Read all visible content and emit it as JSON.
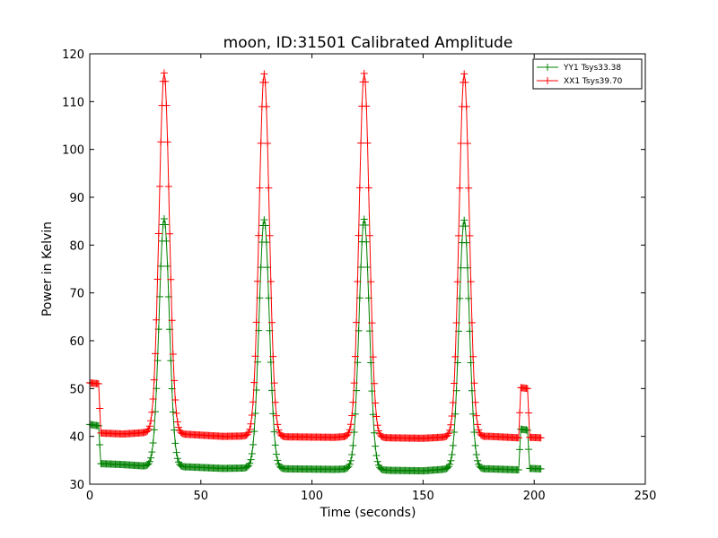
{
  "chart_data": {
    "type": "line",
    "title": "moon, ID:31501 Calibrated Amplitude",
    "xlabel": "Time (seconds)",
    "ylabel": "Power in Kelvin",
    "xlim": [
      0,
      250
    ],
    "ylim": [
      30,
      120
    ],
    "xticks": [
      "0",
      "50",
      "100",
      "150",
      "200",
      "250"
    ],
    "yticks": [
      "30",
      "40",
      "50",
      "60",
      "70",
      "80",
      "90",
      "100",
      "110",
      "120"
    ],
    "grid": false,
    "legend_position": "top-right",
    "series": [
      {
        "name": "YY1 Tsys33.38",
        "color": "#008000",
        "marker": "plus",
        "baseline": [
          [
            0,
            42.5
          ],
          [
            4,
            42.2
          ],
          [
            5,
            34.3
          ],
          [
            15,
            34.1
          ],
          [
            25,
            33.8
          ],
          [
            45,
            33.6
          ],
          [
            60,
            33.3
          ],
          [
            72,
            33.4
          ],
          [
            90,
            33.2
          ],
          [
            110,
            33.1
          ],
          [
            117,
            33.2
          ],
          [
            135,
            32.9
          ],
          [
            150,
            32.8
          ],
          [
            162,
            33.2
          ],
          [
            180,
            33.2
          ],
          [
            193,
            33.0
          ],
          [
            194,
            41.5
          ],
          [
            197,
            41.3
          ],
          [
            198,
            33.3
          ],
          [
            203,
            33.2
          ]
        ],
        "peaks": [
          {
            "center": 33.5,
            "height": 85.5
          },
          {
            "center": 78.5,
            "height": 85.3
          },
          {
            "center": 123.5,
            "height": 85.4
          },
          {
            "center": 168.5,
            "height": 85.2
          }
        ]
      },
      {
        "name": "XX1 Tsys39.70",
        "color": "#ff0000",
        "marker": "plus",
        "baseline": [
          [
            0,
            51.2
          ],
          [
            4,
            51.0
          ],
          [
            5,
            40.7
          ],
          [
            15,
            40.5
          ],
          [
            25,
            40.8
          ],
          [
            45,
            40.4
          ],
          [
            60,
            40.0
          ],
          [
            72,
            40.1
          ],
          [
            90,
            39.9
          ],
          [
            110,
            39.8
          ],
          [
            117,
            40.0
          ],
          [
            135,
            39.7
          ],
          [
            150,
            39.6
          ],
          [
            162,
            39.9
          ],
          [
            180,
            40.0
          ],
          [
            193,
            39.7
          ],
          [
            194,
            50.2
          ],
          [
            197,
            50.0
          ],
          [
            198,
            39.8
          ],
          [
            203,
            39.7
          ]
        ],
        "peaks": [
          {
            "center": 33.5,
            "height": 116.0
          },
          {
            "center": 78.5,
            "height": 115.8
          },
          {
            "center": 123.5,
            "height": 115.9
          },
          {
            "center": 168.5,
            "height": 115.8
          }
        ]
      }
    ]
  }
}
